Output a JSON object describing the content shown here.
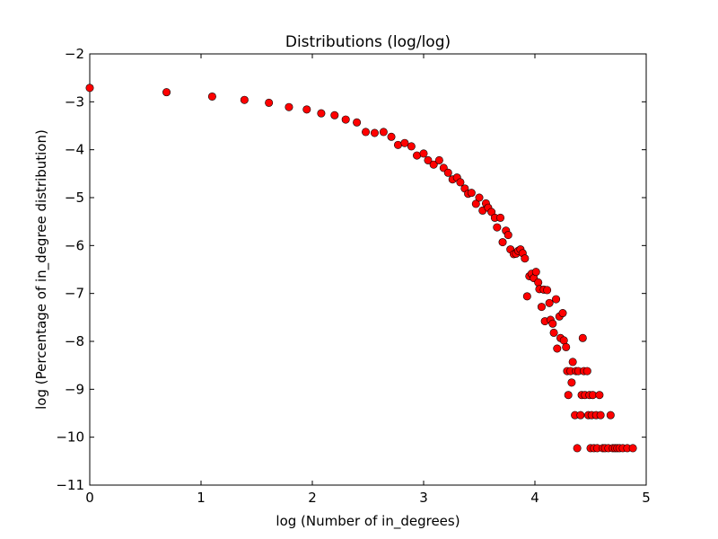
{
  "chart_data": {
    "type": "scatter",
    "title": "Distributions (log/log)",
    "xlabel": "log (Number of in_degrees)",
    "ylabel": "log (Percentage of in_degree distribution)",
    "xlim": [
      0,
      5
    ],
    "ylim": [
      -11,
      -2
    ],
    "xticks": [
      0,
      1,
      2,
      3,
      4,
      5
    ],
    "yticks": [
      -11,
      -10,
      -9,
      -8,
      -7,
      -6,
      -5,
      -4,
      -3,
      -2
    ],
    "xtick_labels": [
      "0",
      "1",
      "2",
      "3",
      "4",
      "5"
    ],
    "ytick_labels": [
      "−11",
      "−10",
      "−9",
      "−8",
      "−7",
      "−6",
      "−5",
      "−4",
      "−3",
      "−2"
    ],
    "grid": false,
    "marker_color": "#ff0000",
    "points": [
      [
        0.0,
        -2.71
      ],
      [
        0.69,
        -2.8
      ],
      [
        1.1,
        -2.89
      ],
      [
        1.39,
        -2.96
      ],
      [
        1.61,
        -3.02
      ],
      [
        1.79,
        -3.11
      ],
      [
        1.95,
        -3.16
      ],
      [
        2.08,
        -3.24
      ],
      [
        2.2,
        -3.28
      ],
      [
        2.3,
        -3.37
      ],
      [
        2.4,
        -3.43
      ],
      [
        2.48,
        -3.63
      ],
      [
        2.56,
        -3.65
      ],
      [
        2.64,
        -3.63
      ],
      [
        2.71,
        -3.73
      ],
      [
        2.77,
        -3.9
      ],
      [
        2.83,
        -3.86
      ],
      [
        2.89,
        -3.93
      ],
      [
        2.94,
        -4.12
      ],
      [
        3.0,
        -4.08
      ],
      [
        3.04,
        -4.22
      ],
      [
        3.09,
        -4.31
      ],
      [
        3.14,
        -4.22
      ],
      [
        3.18,
        -4.38
      ],
      [
        3.22,
        -4.48
      ],
      [
        3.26,
        -4.62
      ],
      [
        3.3,
        -4.58
      ],
      [
        3.33,
        -4.68
      ],
      [
        3.37,
        -4.81
      ],
      [
        3.4,
        -4.92
      ],
      [
        3.43,
        -4.9
      ],
      [
        3.47,
        -5.13
      ],
      [
        3.5,
        -5.0
      ],
      [
        3.53,
        -5.27
      ],
      [
        3.56,
        -5.12
      ],
      [
        3.58,
        -5.21
      ],
      [
        3.61,
        -5.3
      ],
      [
        3.64,
        -5.42
      ],
      [
        3.66,
        -5.62
      ],
      [
        3.69,
        -5.42
      ],
      [
        3.71,
        -5.93
      ],
      [
        3.74,
        -5.69
      ],
      [
        3.76,
        -5.78
      ],
      [
        3.78,
        -6.08
      ],
      [
        3.81,
        -6.18
      ],
      [
        3.83,
        -6.17
      ],
      [
        3.85,
        -6.11
      ],
      [
        3.87,
        -6.08
      ],
      [
        3.89,
        -6.16
      ],
      [
        3.91,
        -6.27
      ],
      [
        3.93,
        -7.06
      ],
      [
        3.95,
        -6.64
      ],
      [
        3.97,
        -6.59
      ],
      [
        3.99,
        -6.68
      ],
      [
        4.01,
        -6.55
      ],
      [
        4.03,
        -6.77
      ],
      [
        4.04,
        -6.91
      ],
      [
        4.06,
        -7.28
      ],
      [
        4.08,
        -6.92
      ],
      [
        4.09,
        -7.58
      ],
      [
        4.11,
        -6.93
      ],
      [
        4.13,
        -7.2
      ],
      [
        4.14,
        -7.55
      ],
      [
        4.16,
        -7.63
      ],
      [
        4.17,
        -7.82
      ],
      [
        4.19,
        -7.12
      ],
      [
        4.2,
        -8.15
      ],
      [
        4.22,
        -7.48
      ],
      [
        4.23,
        -7.93
      ],
      [
        4.25,
        -7.41
      ],
      [
        4.26,
        -7.98
      ],
      [
        4.28,
        -8.12
      ],
      [
        4.29,
        -8.62
      ],
      [
        4.3,
        -9.12
      ],
      [
        4.32,
        -8.62
      ],
      [
        4.33,
        -8.86
      ],
      [
        4.34,
        -8.43
      ],
      [
        4.36,
        -9.54
      ],
      [
        4.37,
        -8.62
      ],
      [
        4.38,
        -10.23
      ],
      [
        4.39,
        -8.62
      ],
      [
        4.41,
        -9.54
      ],
      [
        4.42,
        -9.12
      ],
      [
        4.43,
        -7.93
      ],
      [
        4.44,
        -8.62
      ],
      [
        4.45,
        -9.12
      ],
      [
        4.47,
        -8.62
      ],
      [
        4.48,
        -9.54
      ],
      [
        4.49,
        -9.12
      ],
      [
        4.5,
        -10.23
      ],
      [
        4.51,
        -9.54
      ],
      [
        4.52,
        -9.12
      ],
      [
        4.53,
        -10.23
      ],
      [
        4.55,
        -9.54
      ],
      [
        4.56,
        -10.23
      ],
      [
        4.58,
        -9.12
      ],
      [
        4.59,
        -9.54
      ],
      [
        4.61,
        -10.23
      ],
      [
        4.63,
        -10.23
      ],
      [
        4.66,
        -10.23
      ],
      [
        4.68,
        -9.54
      ],
      [
        4.7,
        -10.23
      ],
      [
        4.72,
        -10.23
      ],
      [
        4.74,
        -10.23
      ],
      [
        4.76,
        -10.23
      ],
      [
        4.79,
        -10.23
      ],
      [
        4.83,
        -10.23
      ],
      [
        4.88,
        -10.23
      ]
    ]
  }
}
